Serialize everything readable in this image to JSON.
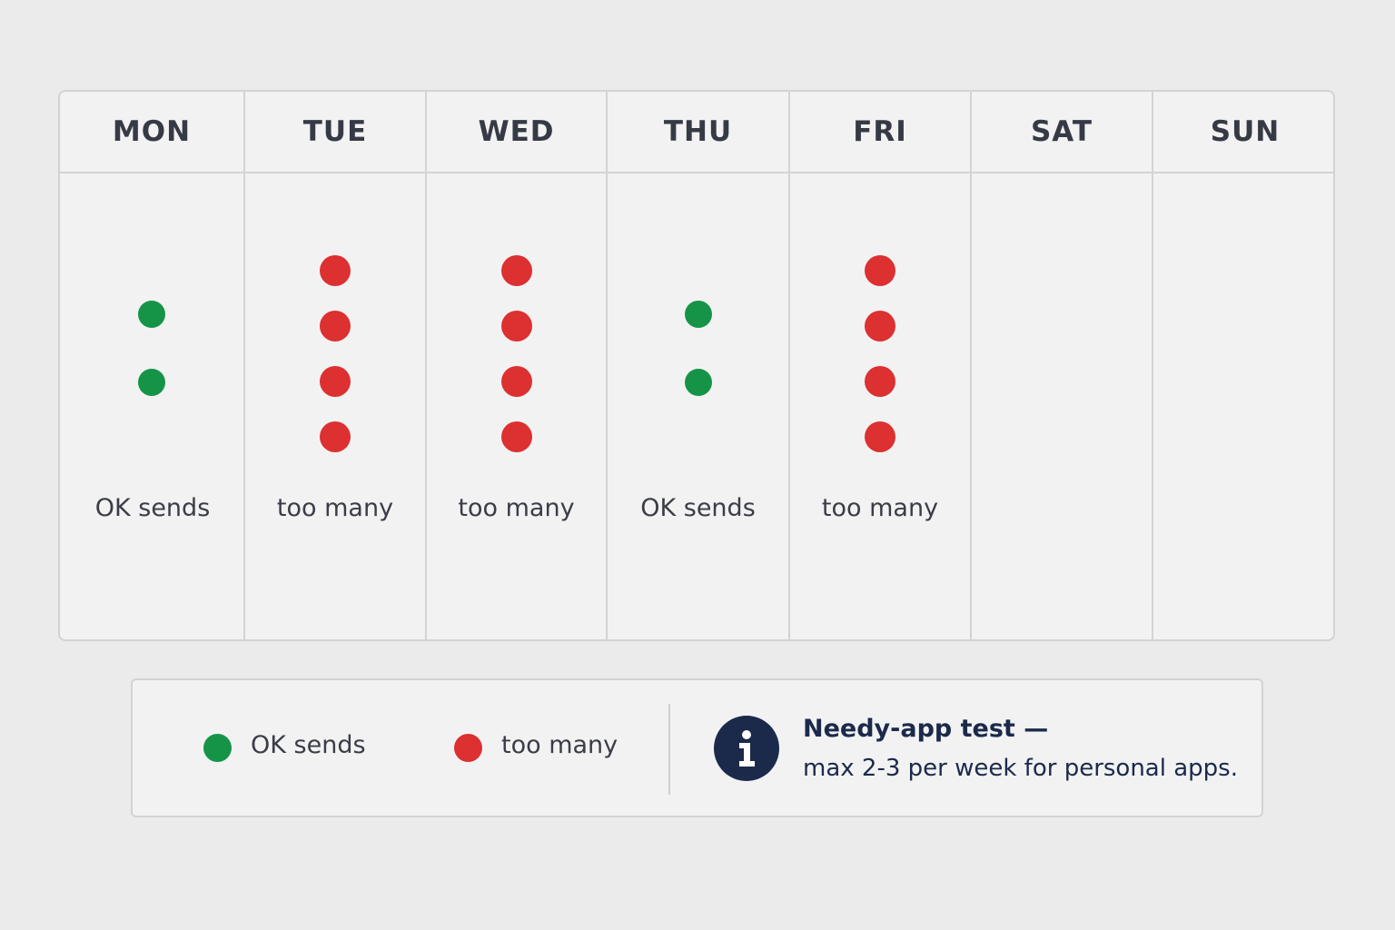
{
  "colors": {
    "ok": "#159448",
    "too_many": "#dd3030",
    "accent": "#1b2a4a"
  },
  "week": {
    "days": [
      {
        "label": "MON",
        "sends": 2,
        "status": "ok",
        "status_label": "OK sends"
      },
      {
        "label": "TUE",
        "sends": 4,
        "status": "too_many",
        "status_label": "too many"
      },
      {
        "label": "WED",
        "sends": 4,
        "status": "too_many",
        "status_label": "too many"
      },
      {
        "label": "THU",
        "sends": 2,
        "status": "ok",
        "status_label": "OK sends"
      },
      {
        "label": "FRI",
        "sends": 4,
        "status": "too_many",
        "status_label": "too many"
      },
      {
        "label": "SAT",
        "sends": 0,
        "status": "",
        "status_label": ""
      },
      {
        "label": "SUN",
        "sends": 0,
        "status": "",
        "status_label": ""
      }
    ]
  },
  "legend": {
    "ok_label": "OK sends",
    "too_many_label": "too many"
  },
  "note": {
    "icon": "info-icon",
    "title": "Needy-app test —",
    "body": "max 2-3 per week for personal apps."
  }
}
